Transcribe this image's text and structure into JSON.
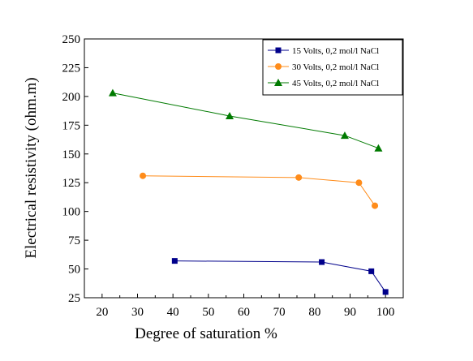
{
  "chart_data": {
    "type": "line",
    "xlabel": "Degree of saturation %",
    "ylabel": "Electrical resistivity (ohm.m)",
    "xlim": [
      15,
      105
    ],
    "ylim": [
      25,
      250
    ],
    "xticks": [
      20,
      30,
      40,
      50,
      60,
      70,
      80,
      90,
      100
    ],
    "yticks": [
      25,
      50,
      75,
      100,
      125,
      150,
      175,
      200,
      225,
      250
    ],
    "grid": false,
    "legend_position": "top-right",
    "series": [
      {
        "name": "15 Volts, 0,2 mol/l NaCl",
        "color": "#00008b",
        "marker": "square",
        "x": [
          40.5,
          82,
          96,
          100
        ],
        "y": [
          57,
          56,
          48,
          30
        ]
      },
      {
        "name": "30 Volts, 0,2 mol/l NaCl",
        "color": "#ff8c1a",
        "marker": "circle",
        "x": [
          31.5,
          75.5,
          92.5,
          97
        ],
        "y": [
          131,
          129.5,
          125,
          105
        ]
      },
      {
        "name": "45 Volts, 0,2 mol/l NaCl",
        "color": "#007a00",
        "marker": "triangle",
        "x": [
          23,
          56,
          88.5,
          98
        ],
        "y": [
          203,
          183,
          166,
          155
        ]
      }
    ]
  }
}
